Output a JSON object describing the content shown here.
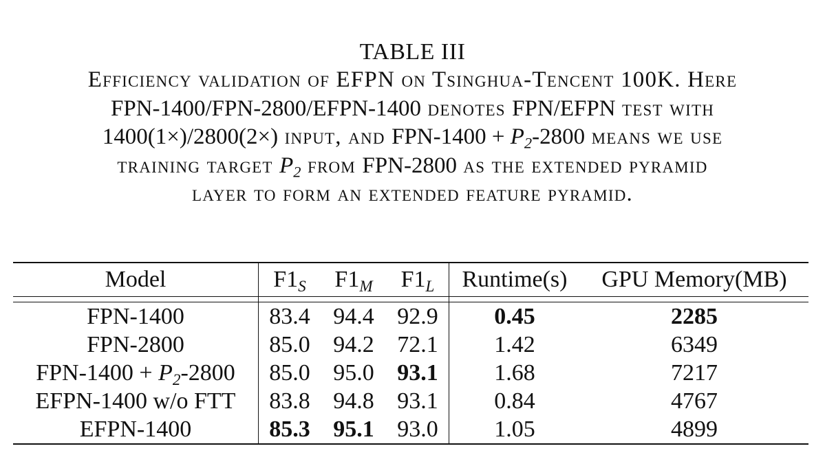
{
  "caption": {
    "label": "TABLE III",
    "lines": [
      {
        "parts": [
          {
            "text": "Efficiency validation of EFPN on Tsinghua-Tencent 100K. Here",
            "style": "sc"
          }
        ]
      },
      {
        "parts": [
          {
            "text": "FPN-1400/FPN-2800/EFPN-1400",
            "style": "normal"
          },
          {
            "text": " denotes ",
            "style": "sc"
          },
          {
            "text": "FPN/EFPN",
            "style": "normal"
          },
          {
            "text": " test with",
            "style": "sc"
          }
        ]
      },
      {
        "parts": [
          {
            "text": "1400(1×)/2800(2×)",
            "style": "normal"
          },
          {
            "text": " input, and ",
            "style": "sc"
          },
          {
            "text": "FPN-1400 + ",
            "style": "normal"
          },
          {
            "text": "P",
            "style": "math"
          },
          {
            "text": "2",
            "style": "sub"
          },
          {
            "text": "-2800",
            "style": "normal"
          },
          {
            "text": " means we use",
            "style": "sc"
          }
        ]
      },
      {
        "parts": [
          {
            "text": "training target ",
            "style": "sc"
          },
          {
            "text": "P",
            "style": "math"
          },
          {
            "text": "2",
            "style": "sub"
          },
          {
            "text": " from ",
            "style": "sc"
          },
          {
            "text": "FPN-2800",
            "style": "normal"
          },
          {
            "text": " as the extended pyramid",
            "style": "sc"
          }
        ]
      },
      {
        "parts": [
          {
            "text": "layer to form an extended feature pyramid.",
            "style": "sc"
          }
        ]
      }
    ]
  },
  "table": {
    "headers": {
      "model": "Model",
      "f1_s_main": "F1",
      "f1_s_sub": "S",
      "f1_m_main": "F1",
      "f1_m_sub": "M",
      "f1_l_main": "F1",
      "f1_l_sub": "L",
      "runtime": "Runtime(s)",
      "gpu": "GPU Memory(MB)"
    },
    "rows": [
      {
        "model": [
          {
            "text": "FPN-1400",
            "style": "normal"
          }
        ],
        "f1_s": "83.4",
        "f1_m": "94.4",
        "f1_l": "92.9",
        "runtime": "0.45",
        "gpu": "2285",
        "bold": [
          "runtime",
          "gpu"
        ]
      },
      {
        "model": [
          {
            "text": "FPN-2800",
            "style": "normal"
          }
        ],
        "f1_s": "85.0",
        "f1_m": "94.2",
        "f1_l": "72.1",
        "runtime": "1.42",
        "gpu": "6349",
        "bold": []
      },
      {
        "model": [
          {
            "text": "FPN-1400 + ",
            "style": "normal"
          },
          {
            "text": "P",
            "style": "math"
          },
          {
            "text": "2",
            "style": "sub"
          },
          {
            "text": "-2800",
            "style": "normal"
          }
        ],
        "f1_s": "85.0",
        "f1_m": "95.0",
        "f1_l": "93.1",
        "runtime": "1.68",
        "gpu": "7217",
        "bold": [
          "f1_l"
        ]
      },
      {
        "model": [
          {
            "text": "EFPN-1400 w/o FTT",
            "style": "normal"
          }
        ],
        "f1_s": "83.8",
        "f1_m": "94.8",
        "f1_l": "93.1",
        "runtime": "0.84",
        "gpu": "4767",
        "bold": []
      },
      {
        "model": [
          {
            "text": "EFPN-1400",
            "style": "normal"
          }
        ],
        "f1_s": "85.3",
        "f1_m": "95.1",
        "f1_l": "93.0",
        "runtime": "1.05",
        "gpu": "4899",
        "bold": [
          "f1_s",
          "f1_m"
        ]
      }
    ]
  }
}
